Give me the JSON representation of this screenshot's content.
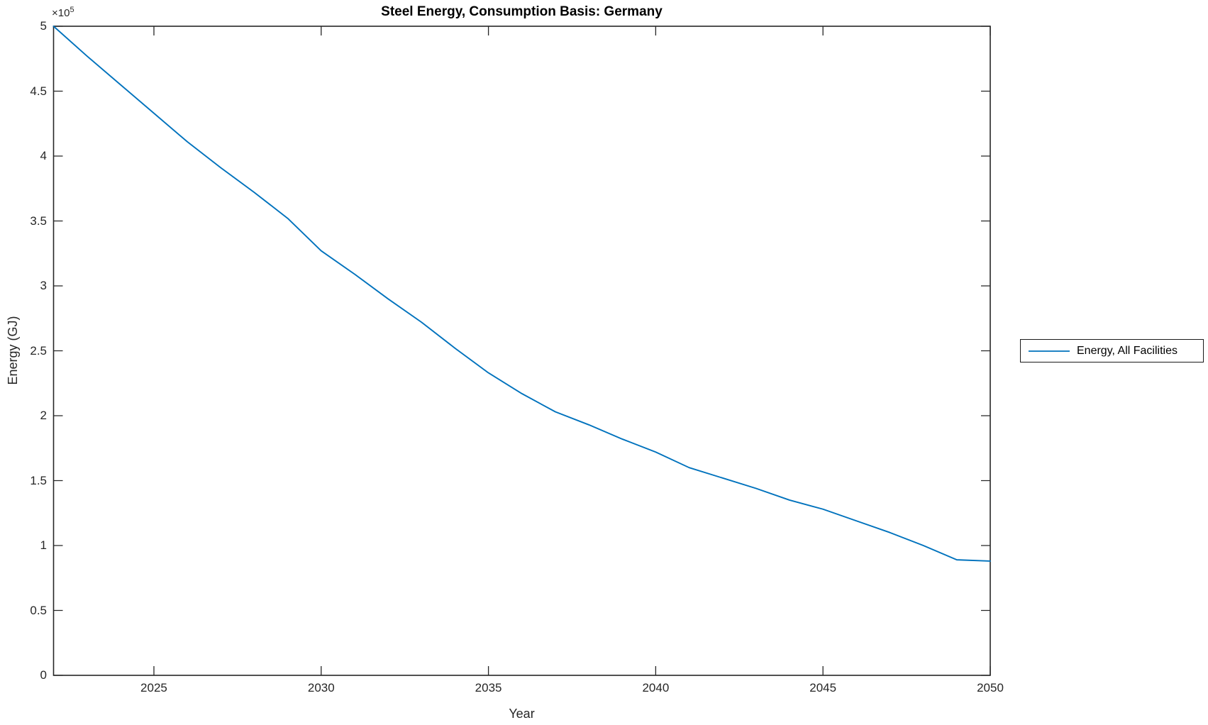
{
  "figure": {
    "background": "#ffffff"
  },
  "axes": {
    "y_multiplier_base": "×10",
    "y_multiplier_exp": "5"
  },
  "chart_data": {
    "type": "line",
    "title": "Steel Energy, Consumption Basis: Germany",
    "xlabel": "Year",
    "ylabel": "Energy (GJ)",
    "xlim": [
      2022,
      2050
    ],
    "ylim": [
      0,
      500000
    ],
    "grid": false,
    "x_ticks": [
      2025,
      2030,
      2035,
      2040,
      2045,
      2050
    ],
    "x_tick_labels": [
      "2025",
      "2030",
      "2035",
      "2040",
      "2045",
      "2050"
    ],
    "y_tick_values": [
      0,
      50000,
      100000,
      150000,
      200000,
      250000,
      300000,
      350000,
      400000,
      450000,
      500000
    ],
    "y_tick_labels": [
      "0",
      "0.5",
      "1",
      "1.5",
      "2",
      "2.5",
      "3",
      "3.5",
      "4",
      "4.5",
      "5"
    ],
    "axis_color": "#262626",
    "legend": {
      "position": "right-outside",
      "entries": [
        {
          "label": "Energy, All Facilities",
          "color": "#0072BD"
        }
      ]
    },
    "series": [
      {
        "name": "Energy, All Facilities",
        "color": "#0072BD",
        "x": [
          2022,
          2023,
          2024,
          2025,
          2026,
          2027,
          2028,
          2029,
          2030,
          2031,
          2032,
          2033,
          2034,
          2035,
          2036,
          2037,
          2038,
          2039,
          2040,
          2041,
          2042,
          2043,
          2044,
          2045,
          2046,
          2047,
          2048,
          2049,
          2050
        ],
        "values": [
          500000,
          477000,
          455000,
          433000,
          411000,
          391000,
          372000,
          352000,
          327000,
          309000,
          290000,
          272000,
          252000,
          233000,
          217000,
          203000,
          193000,
          182000,
          172000,
          160000,
          152000,
          144000,
          135000,
          128000,
          119000,
          110000,
          100000,
          89000,
          88000
        ]
      }
    ]
  }
}
